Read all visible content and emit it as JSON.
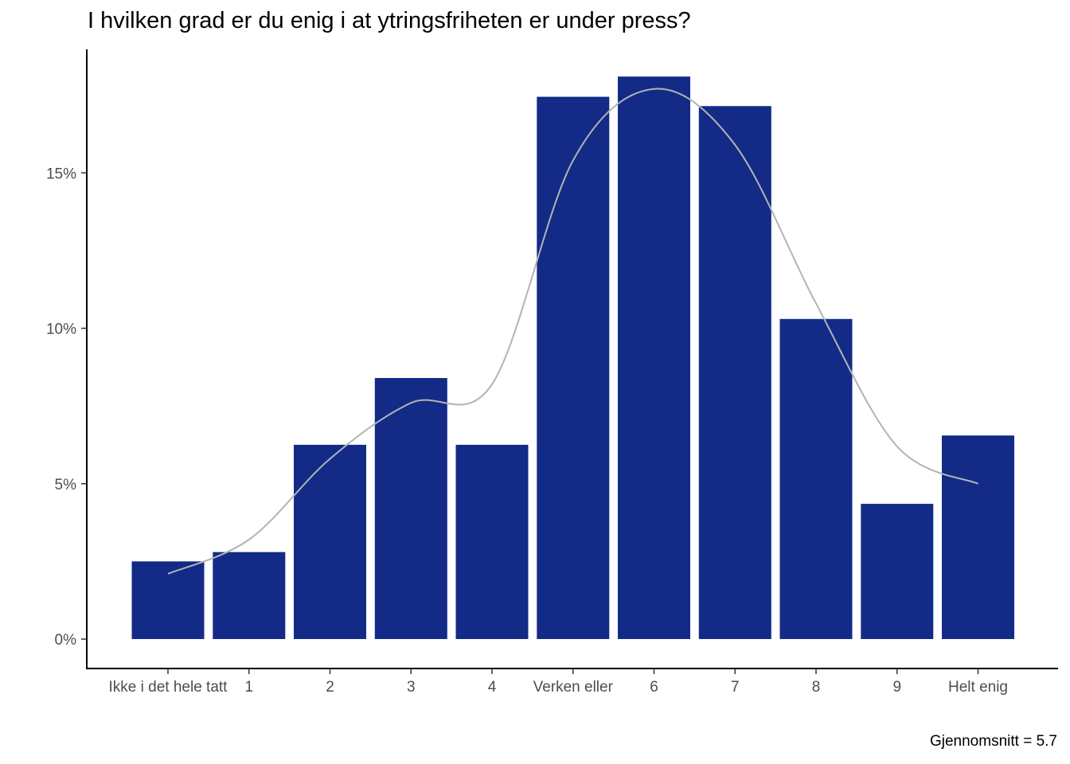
{
  "chart_data": {
    "type": "bar",
    "title": "I hvilken grad er du enig i at ytringsfriheten er under press?",
    "categories": [
      "Ikke i det hele tatt",
      "1",
      "2",
      "3",
      "4",
      "Verken eller",
      "6",
      "7",
      "8",
      "9",
      "Helt enig"
    ],
    "values": [
      2.5,
      2.8,
      6.25,
      8.4,
      6.25,
      17.45,
      18.1,
      17.15,
      10.3,
      4.35,
      6.55
    ],
    "smooth_values": [
      2.1,
      3.2,
      5.8,
      7.6,
      8.2,
      15.4,
      17.7,
      15.9,
      10.8,
      6.2,
      5.0
    ],
    "ylim": [
      0,
      19
    ],
    "yticks": [
      0,
      5,
      10,
      15
    ],
    "ytick_labels": [
      "0%",
      "5%",
      "10%",
      "15%"
    ],
    "xlabel": "",
    "ylabel": "",
    "grid": false,
    "bar_color": "#132b87",
    "line_color": "#b3b3b3",
    "caption": "Gjennomsnitt = 5.7"
  }
}
